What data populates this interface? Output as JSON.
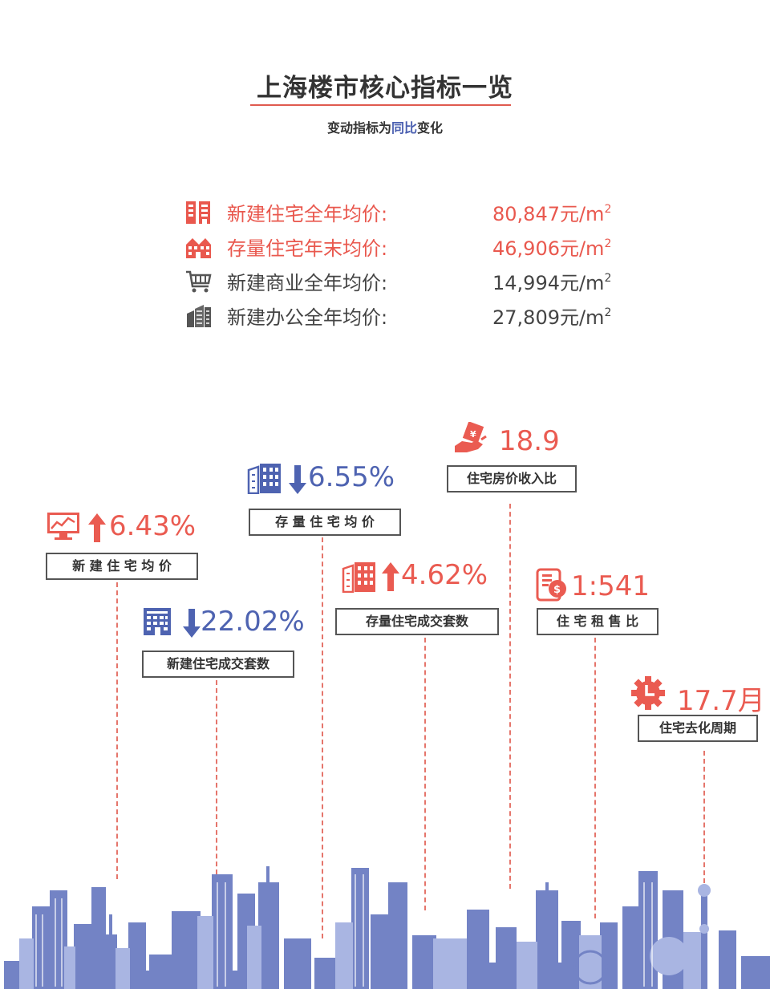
{
  "header": {
    "title": "上海楼市核心指标一览",
    "subtitle_prefix": "变动指标为",
    "subtitle_highlight": "同比",
    "subtitle_suffix": "变化"
  },
  "price_list": [
    {
      "icon": "building-icon",
      "label": "新建住宅全年均价:",
      "value": "80,847元/m",
      "sup": "2",
      "color": "#e9584e"
    },
    {
      "icon": "houses-icon",
      "label": "存量住宅年末均价:",
      "value": "46,906元/m",
      "sup": "2",
      "color": "#e9584e"
    },
    {
      "icon": "shopping-cart-icon",
      "label": "新建商业全年均价:",
      "value": "14,994元/m",
      "sup": "2",
      "color": "#444444"
    },
    {
      "icon": "office-building-icon",
      "label": "新建办公全年均价:",
      "value": "27,809元/m",
      "sup": "2",
      "color": "#444444"
    }
  ],
  "metrics": {
    "new_house_price": {
      "value": "6.43%",
      "label": "新 建 住 宅 均 价",
      "direction": "up",
      "icon": "chart-monitor-icon",
      "color": "#ea5b51"
    },
    "new_house_volume": {
      "value": "22.02%",
      "label": "新建住宅成交套数",
      "direction": "down",
      "icon": "apartment-icon",
      "color": "#4e63b1"
    },
    "existing_price": {
      "value": "6.55%",
      "label": "存 量 住 宅 均 价",
      "direction": "down",
      "icon": "buildings-icon",
      "color": "#4e63b1"
    },
    "existing_volume": {
      "value": "4.62%",
      "label": "存量住宅成交套数",
      "direction": "up",
      "icon": "buildings-icon",
      "color": "#ea5b51"
    },
    "price_income_ratio": {
      "value": "18.9",
      "label": "住宅房价收入比",
      "icon": "money-hand-icon",
      "color": "#ea5b51"
    },
    "rent_sale_ratio": {
      "value": "1:541",
      "label": "住 宅 租 售 比",
      "icon": "phone-money-icon",
      "color": "#ea5b51"
    },
    "destock_cycle": {
      "value": "17.7月",
      "label": "住宅去化周期",
      "icon": "clock-gear-icon",
      "color": "#ea5b51"
    }
  },
  "colors": {
    "accent_red": "#e9584e",
    "accent_blue": "#4e63b1",
    "skyline": "#7383c5"
  }
}
